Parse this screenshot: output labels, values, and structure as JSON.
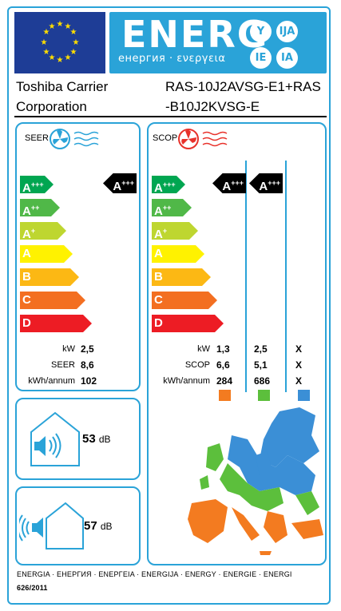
{
  "header": {
    "energy_word": "ENERG",
    "energy_sub": "енергия · ενεργεια",
    "lang_suffixes": [
      "Y",
      "IJA",
      "IE",
      "IA"
    ]
  },
  "supplier": {
    "line1": "Toshiba Carrier",
    "line2": "Corporation"
  },
  "model": {
    "line1": "RAS-10J2AVSG-E1+RAS",
    "line2": "-B10J2KVSG-E"
  },
  "classes": [
    {
      "main": "A",
      "sup": "+++",
      "color": "#00a651"
    },
    {
      "main": "A",
      "sup": "++",
      "color": "#50b848"
    },
    {
      "main": "A",
      "sup": "+",
      "color": "#bed630"
    },
    {
      "main": "A",
      "sup": "",
      "color": "#fff200"
    },
    {
      "main": "B",
      "sup": "",
      "color": "#fcb814"
    },
    {
      "main": "C",
      "sup": "",
      "color": "#f36f21"
    },
    {
      "main": "D",
      "sup": "",
      "color": "#ed1c24"
    }
  ],
  "cooling": {
    "title": "SEER",
    "rating": {
      "main": "A",
      "sup": "+++"
    },
    "labels": [
      "kW",
      "SEER",
      "kWh/annum"
    ],
    "values": [
      "2,5",
      "8,6",
      "102"
    ]
  },
  "heating": {
    "title": "SCOP",
    "ratings": [
      {
        "main": "A",
        "sup": "+++"
      },
      {
        "main": "A",
        "sup": "+++"
      }
    ],
    "labels": [
      "kW",
      "SCOP",
      "kWh/annum"
    ],
    "col1": [
      "1,3",
      "6,6",
      "284"
    ],
    "col2": [
      "2,5",
      "5,1",
      "686"
    ],
    "col3": [
      "X",
      "X",
      "X"
    ],
    "zone_colors": [
      "#f37b20",
      "#5cbf3c",
      "#3b8fd6"
    ]
  },
  "noise": {
    "indoor_value": "53",
    "indoor_unit": "dB",
    "outdoor_value": "57",
    "outdoor_unit": "dB"
  },
  "footer": {
    "languages": "ENERGIA · ЕНЕРГИЯ · ΕΝΕΡΓΕΙΑ · ENERGIJA · ENERGY · ENERGIE · ENERGI",
    "regulation": "626/2011"
  },
  "colors": {
    "accent": "#2aa3d8",
    "eu_blue": "#1e3d96",
    "eu_star": "#ffde00"
  }
}
